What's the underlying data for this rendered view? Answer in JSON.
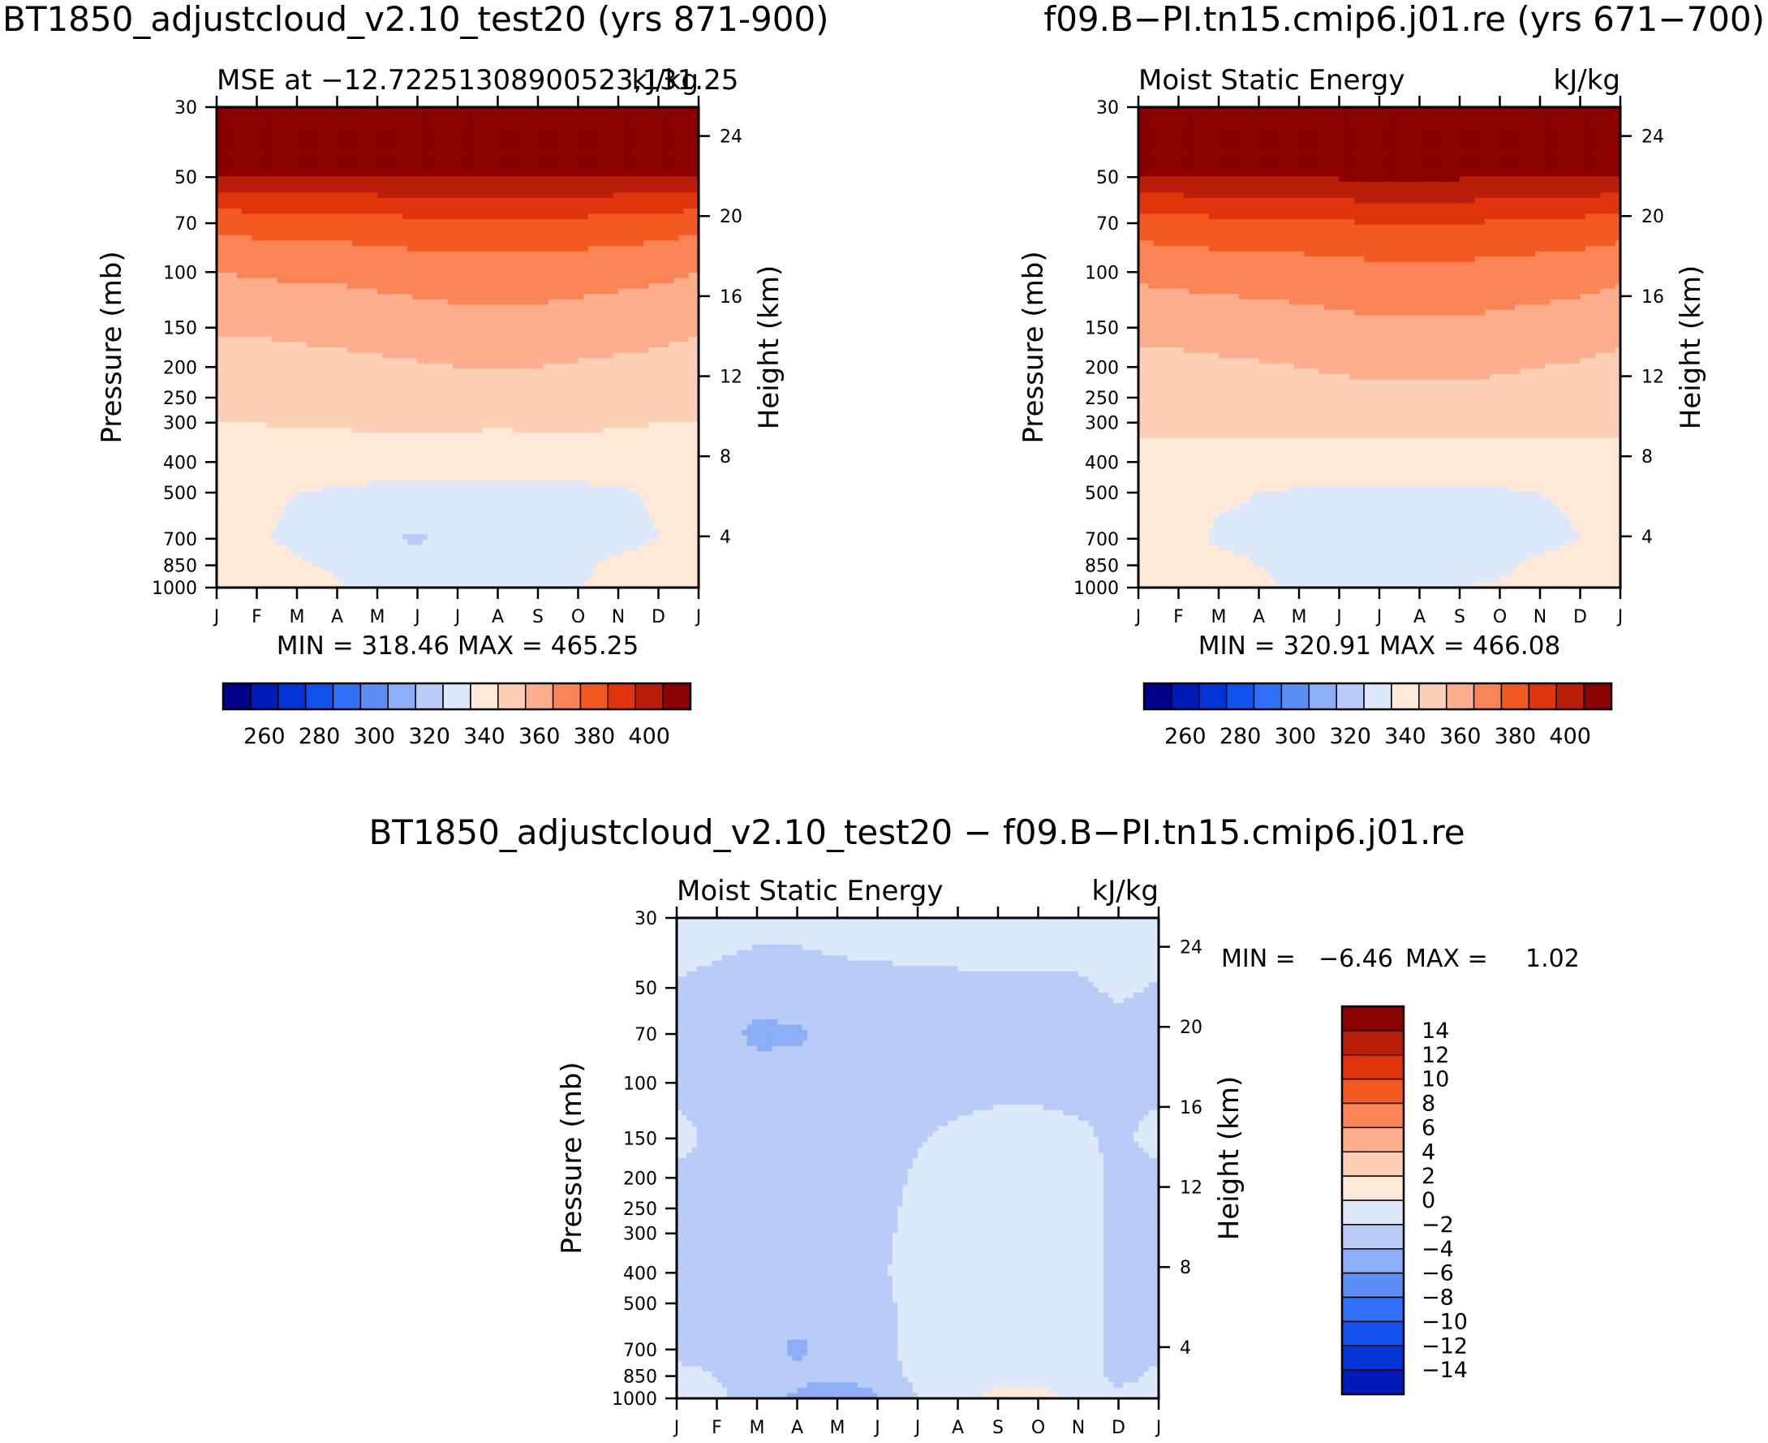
{
  "chart_data": [
    {
      "type": "heatmap",
      "panel": "top-left",
      "title": "BT1850_adjustcloud_v2.10_test20 (yrs 871-900)",
      "subtitle_left": "MSE at −12.72251308900523,131.25",
      "subtitle_right": "kJ/kg",
      "xlabel": "",
      "ylabel": "Pressure (mb)",
      "ylabel_right": "Height (km)",
      "x_ticks": [
        "J",
        "F",
        "M",
        "A",
        "M",
        "J",
        "J",
        "A",
        "S",
        "O",
        "N",
        "D",
        "J"
      ],
      "y_ticks": [
        "30",
        "50",
        "70",
        "100",
        "150",
        "200",
        "250",
        "300",
        "400",
        "500",
        "700",
        "850",
        "1000"
      ],
      "y_ticks_right": [
        "24",
        "20",
        "16",
        "12",
        "8",
        "4"
      ],
      "stats": "MIN =  318.46  MAX =  465.25",
      "colorbar_labels": [
        "260",
        "280",
        "300",
        "320",
        "340",
        "360",
        "380",
        "400"
      ],
      "contour_levels": [
        250,
        260,
        270,
        280,
        290,
        300,
        310,
        320,
        330,
        340,
        350,
        360,
        370,
        380,
        390,
        400
      ],
      "month_profiles": {
        "1000": [
          338,
          338,
          334,
          331,
          326,
          326,
          327,
          328,
          329,
          330,
          333,
          337,
          338
        ],
        "850": [
          336,
          335,
          331,
          329,
          325,
          325,
          325,
          326,
          327,
          328,
          332,
          335,
          336
        ],
        "700": [
          332,
          331,
          328,
          327,
          322,
          318.5,
          323,
          324,
          325,
          326,
          327,
          330,
          332
        ],
        "500": [
          333,
          332,
          330,
          329,
          328,
          328,
          328,
          328,
          328,
          328,
          329,
          331,
          333
        ],
        "400": [
          335,
          335,
          334,
          334,
          334,
          334,
          334,
          334,
          334,
          334,
          334,
          335,
          335
        ],
        "300": [
          340,
          340,
          341,
          341,
          342,
          342,
          342,
          341,
          342,
          342,
          341,
          340,
          340
        ],
        "200": [
          345,
          345,
          346,
          347,
          348,
          349,
          350,
          350,
          350,
          349,
          348,
          347,
          345
        ],
        "100": [
          360,
          361,
          362,
          362,
          363,
          364,
          365,
          365,
          365,
          364,
          363,
          362,
          360
        ],
        "70": [
          373,
          374,
          375,
          375,
          376,
          377,
          378,
          378,
          378,
          377,
          376,
          375,
          373
        ],
        "50": [
          398,
          398,
          398,
          399,
          399,
          400,
          400,
          400,
          400,
          399,
          399,
          398,
          398
        ],
        "30": [
          460,
          461,
          462,
          462,
          463,
          464,
          465,
          465,
          465,
          464,
          463,
          462,
          460
        ]
      }
    },
    {
      "type": "heatmap",
      "panel": "top-right",
      "title": "f09.B−PI.tn15.cmip6.j01.re (yrs 671−700)",
      "subtitle_left": "Moist Static Energy",
      "subtitle_right": "kJ/kg",
      "xlabel": "",
      "ylabel": "Pressure (mb)",
      "ylabel_right": "Height (km)",
      "x_ticks": [
        "J",
        "F",
        "M",
        "A",
        "M",
        "J",
        "J",
        "A",
        "S",
        "O",
        "N",
        "D",
        "J"
      ],
      "y_ticks": [
        "30",
        "50",
        "70",
        "100",
        "150",
        "200",
        "250",
        "300",
        "400",
        "500",
        "700",
        "850",
        "1000"
      ],
      "y_ticks_right": [
        "24",
        "20",
        "16",
        "12",
        "8",
        "4"
      ],
      "stats": "MIN =  320.91  MAX =  466.08",
      "colorbar_labels": [
        "260",
        "280",
        "300",
        "320",
        "340",
        "360",
        "380",
        "400"
      ],
      "contour_levels": [
        250,
        260,
        270,
        280,
        290,
        300,
        310,
        320,
        330,
        340,
        350,
        360,
        370,
        380,
        390,
        400
      ],
      "month_profiles": {
        "1000": [
          338,
          338,
          335,
          332,
          328,
          327,
          328,
          329,
          330,
          331,
          334,
          337,
          338
        ],
        "850": [
          336,
          335,
          332,
          330,
          326,
          325,
          325,
          326,
          327,
          328,
          332,
          335,
          336
        ],
        "700": [
          333,
          332,
          329,
          328,
          325,
          322,
          324,
          324,
          325,
          326,
          327,
          330,
          333
        ],
        "500": [
          334,
          333,
          331,
          330,
          329,
          329,
          329,
          329,
          329,
          329,
          330,
          332,
          334
        ],
        "400": [
          336,
          336,
          335,
          335,
          335,
          335,
          335,
          335,
          335,
          335,
          335,
          336,
          336
        ],
        "300": [
          342,
          342,
          343,
          343,
          344,
          344,
          344,
          344,
          344,
          344,
          343,
          342,
          342
        ],
        "200": [
          347,
          347,
          348,
          349,
          350,
          351,
          352,
          352,
          352,
          351,
          350,
          349,
          347
        ],
        "100": [
          362,
          363,
          364,
          364,
          365,
          366,
          367,
          367,
          367,
          366,
          365,
          364,
          362
        ],
        "70": [
          375,
          376,
          377,
          377,
          378,
          379,
          380,
          380,
          380,
          379,
          378,
          377,
          375
        ],
        "50": [
          399,
          399,
          399,
          400,
          400,
          401,
          401,
          401,
          401,
          400,
          400,
          399,
          399
        ],
        "30": [
          461,
          462,
          463,
          463,
          464,
          465,
          466,
          466,
          466,
          465,
          464,
          463,
          461
        ]
      }
    },
    {
      "type": "heatmap",
      "panel": "bottom",
      "title": "BT1850_adjustcloud_v2.10_test20 − f09.B−PI.tn15.cmip6.j01.re",
      "subtitle_left": "Moist Static Energy",
      "subtitle_right": "kJ/kg",
      "xlabel": "",
      "ylabel": "Pressure (mb)",
      "ylabel_right": "Height (km)",
      "x_ticks": [
        "J",
        "F",
        "M",
        "A",
        "M",
        "J",
        "J",
        "A",
        "S",
        "O",
        "N",
        "D",
        "J"
      ],
      "y_ticks": [
        "30",
        "50",
        "70",
        "100",
        "150",
        "200",
        "250",
        "300",
        "400",
        "500",
        "700",
        "850",
        "1000"
      ],
      "y_ticks_right": [
        "24",
        "20",
        "16",
        "12",
        "8",
        "4"
      ],
      "stats_min_label": "MIN =",
      "stats_min_value": "−6.46",
      "stats_max_label": "MAX =",
      "stats_max_value": "1.02",
      "colorbar_labels": [
        "14",
        "12",
        "10",
        "8",
        "6",
        "4",
        "2",
        "0",
        "−2",
        "−4",
        "−6",
        "−8",
        "−10",
        "−12",
        "−14"
      ],
      "contour_levels": [
        -15,
        -14,
        -12,
        -10,
        -8,
        -6,
        -4,
        -2,
        0,
        2,
        4,
        6,
        8,
        10,
        12,
        14
      ],
      "month_profiles": {
        "1000": [
          -1.5,
          -1.8,
          -2.5,
          -4.5,
          -6.46,
          -4.2,
          -2.0,
          -1.0,
          0.8,
          1.02,
          -0.8,
          -1.5,
          -1.5
        ],
        "850": [
          -1.6,
          -2.0,
          -2.6,
          -3.2,
          -3.4,
          -3.0,
          -1.5,
          -1.2,
          -1.0,
          -1.0,
          -1.3,
          -2.5,
          -1.6
        ],
        "700": [
          -2.4,
          -2.5,
          -2.8,
          -4.6,
          -2.8,
          -2.4,
          -1.5,
          -1.2,
          -1.0,
          -1.0,
          -1.3,
          -2.5,
          -2.4
        ],
        "500": [
          -2.4,
          -2.5,
          -2.6,
          -2.6,
          -2.6,
          -2.4,
          -1.5,
          -1.2,
          -1.0,
          -1.0,
          -1.3,
          -2.5,
          -2.4
        ],
        "400": [
          -2.4,
          -2.5,
          -2.6,
          -2.6,
          -2.6,
          -2.2,
          -1.5,
          -1.2,
          -1.0,
          -1.0,
          -1.3,
          -2.5,
          -2.4
        ],
        "300": [
          -2.4,
          -2.5,
          -2.6,
          -2.6,
          -2.6,
          -2.3,
          -1.6,
          -1.2,
          -1.0,
          -1.0,
          -1.3,
          -2.4,
          -2.4
        ],
        "200": [
          -2.4,
          -2.5,
          -2.6,
          -2.6,
          -2.6,
          -2.5,
          -1.8,
          -1.3,
          -1.1,
          -1.1,
          -1.5,
          -2.3,
          -2.4
        ],
        "150": [
          -1.5,
          -2.4,
          -2.6,
          -2.6,
          -2.6,
          -2.6,
          -2.1,
          -1.7,
          -1.3,
          -1.3,
          -1.7,
          -2.3,
          -1.5
        ],
        "100": [
          -2.4,
          -2.6,
          -2.8,
          -2.8,
          -2.8,
          -2.8,
          -2.6,
          -2.5,
          -2.5,
          -2.5,
          -2.5,
          -2.4,
          -2.4
        ],
        "70": [
          -2.4,
          -3.0,
          -4.6,
          -4.4,
          -3.0,
          -2.8,
          -2.7,
          -2.6,
          -2.5,
          -2.5,
          -2.5,
          -2.4,
          -2.4
        ],
        "50": [
          -2.1,
          -2.4,
          -2.6,
          -2.6,
          -2.5,
          -2.4,
          -2.4,
          -2.3,
          -2.3,
          -2.2,
          -2.2,
          -1.8,
          -2.1
        ],
        "30": [
          -1.2,
          -1.4,
          -1.6,
          -1.6,
          -1.4,
          -1.3,
          -1.2,
          -1.2,
          -1.2,
          -1.2,
          -1.2,
          -1.2,
          -1.2
        ]
      }
    }
  ],
  "colors": {
    "blue_red_16": [
      "#00008b",
      "#001ab8",
      "#0233d6",
      "#1152ec",
      "#2f6ff5",
      "#5b8ff7",
      "#8cadf7",
      "#b8ccf7",
      "#dde8fb",
      "#ffe9d6",
      "#fdd0b6",
      "#fcae8d",
      "#fb8456",
      "#f35a22",
      "#e1340c",
      "#b81e0a",
      "#8b0000"
    ],
    "axis": "#000000",
    "background": "#ffffff"
  }
}
